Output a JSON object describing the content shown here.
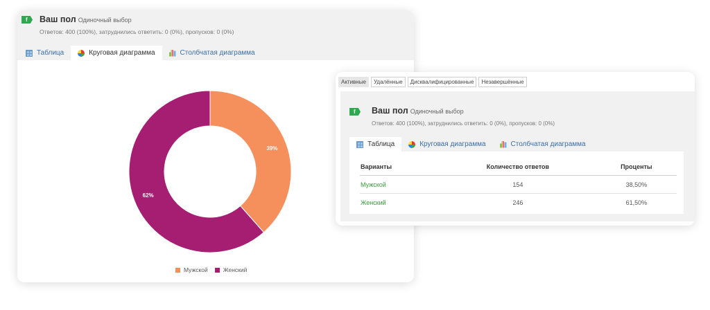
{
  "left_panel": {
    "badge": "f",
    "title": "Ваш пол",
    "type": "Одиночный выбор",
    "stats": "Ответов: 400 (100%), затруднились ответить: 0 (0%), пропусков: 0 (0%)",
    "tabs": [
      {
        "label": "Таблица",
        "icon": "table-icon",
        "active": false
      },
      {
        "label": "Круговая диаграмма",
        "icon": "pie-chart-icon",
        "active": true
      },
      {
        "label": "Столбчатая диаграмма",
        "icon": "bar-chart-icon",
        "active": false
      }
    ]
  },
  "chart_data": {
    "type": "pie",
    "categories": [
      "Мужской",
      "Женский"
    ],
    "values": [
      38.5,
      61.5
    ],
    "data_labels": [
      "39%",
      "62%"
    ],
    "colors": [
      "#f58f5b",
      "#a61e72"
    ],
    "legend": "bottom",
    "title": ""
  },
  "right_panel": {
    "filters": [
      {
        "label": "Активные",
        "active": true
      },
      {
        "label": "Удалённые",
        "active": false
      },
      {
        "label": "Дисквалифицированные",
        "active": false
      },
      {
        "label": "Незавершённые",
        "active": false
      }
    ],
    "badge": "f",
    "title": "Ваш пол",
    "type": "Одиночный выбор",
    "stats": "Ответов: 400 (100%), затруднились ответить: 0 (0%), пропусков: 0 (0%)",
    "tabs": [
      {
        "label": "Таблица",
        "icon": "table-icon",
        "active": true
      },
      {
        "label": "Круговая диаграмма",
        "icon": "pie-chart-icon",
        "active": false
      },
      {
        "label": "Столбчатая диаграмма",
        "icon": "bar-chart-icon",
        "active": false
      }
    ],
    "table": {
      "headers": [
        "Варианты",
        "Количество ответов",
        "Проценты"
      ],
      "rows": [
        [
          "Мужской",
          "154",
          "38,50%"
        ],
        [
          "Женский",
          "246",
          "61,50%"
        ]
      ]
    }
  }
}
